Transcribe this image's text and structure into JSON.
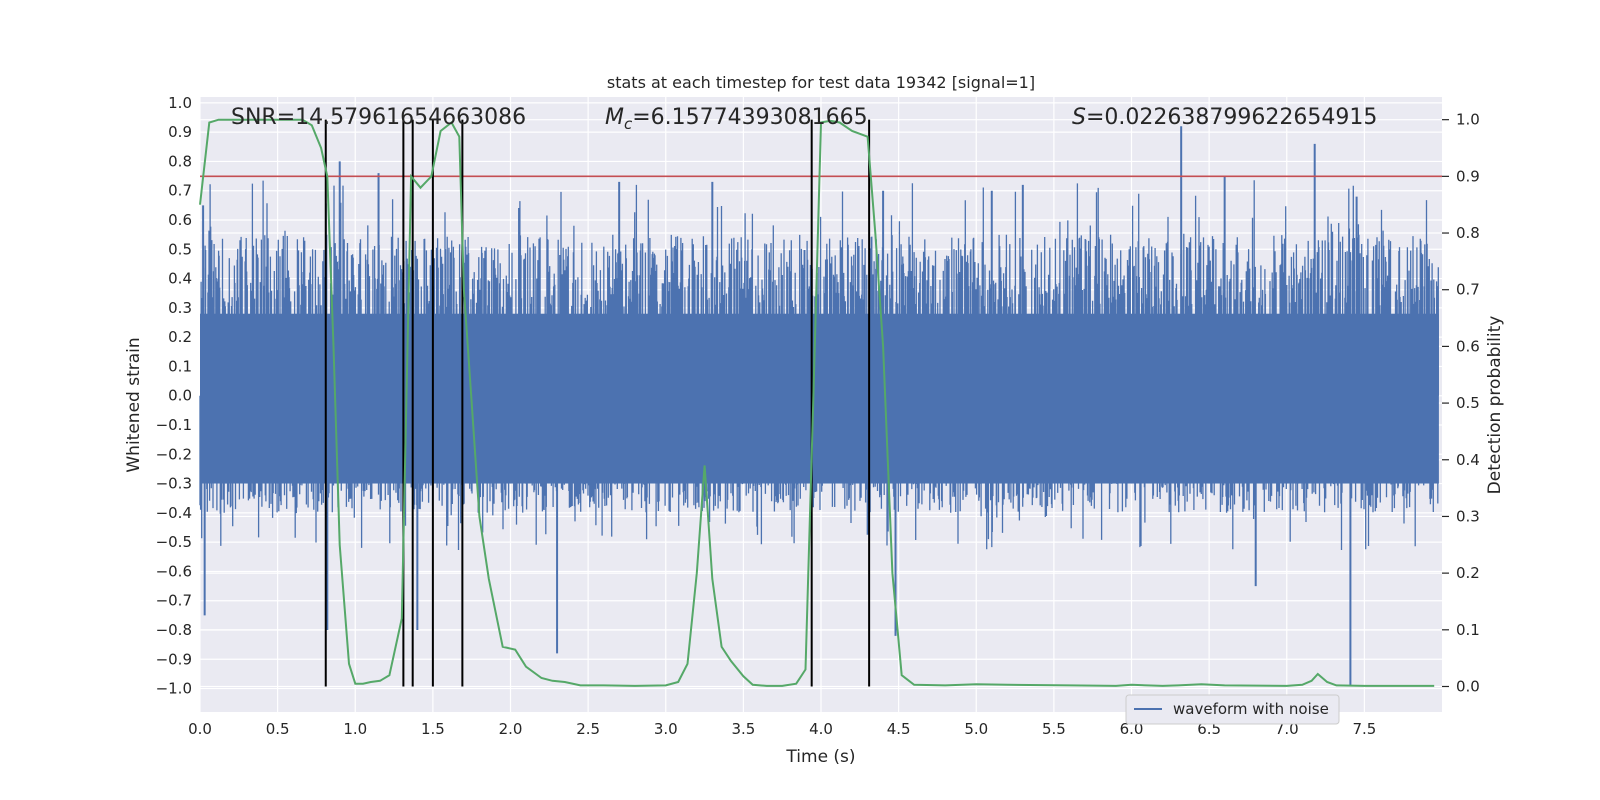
{
  "chart_data": {
    "type": "line",
    "title": "stats at each timestep for test data 19342 [signal=1]",
    "xlabel": "Time (s)",
    "ylabel_left": "Whitened strain",
    "ylabel_right": "Detection probability",
    "xlim": [
      0.0,
      8.0
    ],
    "ylim_left": [
      -1.08,
      1.02
    ],
    "ylim_right": [
      -0.045,
      1.04
    ],
    "x_ticks": [
      "0.0",
      "0.5",
      "1.0",
      "1.5",
      "2.0",
      "2.5",
      "3.0",
      "3.5",
      "4.0",
      "4.5",
      "5.0",
      "5.5",
      "6.0",
      "6.5",
      "7.0",
      "7.5"
    ],
    "y_left_ticks": [
      "1.0",
      "0.9",
      "0.8",
      "0.7",
      "0.6",
      "0.5",
      "0.4",
      "0.3",
      "0.2",
      "0.1",
      "0.0",
      "−0.1",
      "−0.2",
      "−0.3",
      "−0.4",
      "−0.5",
      "−0.6",
      "−0.7",
      "−0.8",
      "−0.9",
      "−1.0"
    ],
    "y_right_ticks": [
      "1.0",
      "0.9",
      "0.8",
      "0.7",
      "0.6",
      "0.5",
      "0.4",
      "0.3",
      "0.2",
      "0.1",
      "0.0"
    ],
    "annotations": {
      "snr": "SNR=14.57961654663086",
      "mc_prefix": "M",
      "mc_sub": "c",
      "mc_value": "=6.15774393081665",
      "s_prefix": "S",
      "s_value": "=0.022638799622654915"
    },
    "threshold": 0.9,
    "vertical_lines": [
      0.81,
      1.31,
      1.37,
      1.5,
      1.69,
      3.94,
      4.31
    ],
    "waveform": {
      "name": "waveform with noise",
      "color": "#4c72b0",
      "seed": 19342,
      "noise_band": [
        -0.4,
        0.55
      ],
      "peaks": [
        {
          "t": 0.02,
          "v": 0.65
        },
        {
          "t": 0.03,
          "v": -0.75
        },
        {
          "t": 0.9,
          "v": 0.8
        },
        {
          "t": 0.82,
          "v": -0.8
        },
        {
          "t": 1.15,
          "v": 0.76
        },
        {
          "t": 1.4,
          "v": -0.8
        },
        {
          "t": 2.3,
          "v": -0.88
        },
        {
          "t": 2.7,
          "v": 0.73
        },
        {
          "t": 3.3,
          "v": 0.73
        },
        {
          "t": 4.4,
          "v": 0.7
        },
        {
          "t": 4.48,
          "v": -0.82
        },
        {
          "t": 5.1,
          "v": 0.7
        },
        {
          "t": 5.3,
          "v": 0.72
        },
        {
          "t": 6.32,
          "v": 0.92
        },
        {
          "t": 6.6,
          "v": 0.75
        },
        {
          "t": 6.8,
          "v": -0.65
        },
        {
          "t": 7.18,
          "v": 0.86
        },
        {
          "t": 7.41,
          "v": -0.99
        },
        {
          "t": 7.45,
          "v": 0.68
        }
      ]
    },
    "probability": {
      "color": "#55a868",
      "x": [
        0.0,
        0.06,
        0.12,
        0.3,
        0.45,
        0.6,
        0.66,
        0.72,
        0.78,
        0.82,
        0.86,
        0.9,
        0.96,
        1.0,
        1.05,
        1.1,
        1.16,
        1.22,
        1.3,
        1.36,
        1.42,
        1.49,
        1.55,
        1.62,
        1.67,
        1.7,
        1.75,
        1.8,
        1.86,
        1.95,
        2.03,
        2.1,
        2.2,
        2.27,
        2.35,
        2.45,
        2.6,
        2.8,
        3.0,
        3.08,
        3.14,
        3.2,
        3.25,
        3.3,
        3.36,
        3.42,
        3.5,
        3.56,
        3.65,
        3.75,
        3.84,
        3.9,
        3.95,
        4.0,
        4.06,
        4.12,
        4.2,
        4.3,
        4.35,
        4.4,
        4.46,
        4.52,
        4.6,
        4.8,
        5.0,
        5.2,
        5.6,
        5.9,
        6.0,
        6.2,
        6.3,
        6.45,
        6.6,
        7.0,
        7.1,
        7.16,
        7.2,
        7.26,
        7.32,
        7.5,
        7.7,
        7.95
      ],
      "y": [
        0.85,
        0.995,
        1.0,
        1.0,
        1.0,
        1.0,
        1.0,
        0.99,
        0.95,
        0.9,
        0.6,
        0.25,
        0.04,
        0.005,
        0.005,
        0.008,
        0.01,
        0.02,
        0.12,
        0.9,
        0.88,
        0.9,
        0.98,
        0.995,
        0.97,
        0.7,
        0.5,
        0.3,
        0.19,
        0.07,
        0.065,
        0.035,
        0.015,
        0.01,
        0.008,
        0.002,
        0.002,
        0.001,
        0.002,
        0.008,
        0.04,
        0.2,
        0.39,
        0.19,
        0.07,
        0.045,
        0.018,
        0.003,
        0.001,
        0.001,
        0.005,
        0.03,
        0.5,
        0.995,
        0.998,
        0.995,
        0.98,
        0.97,
        0.8,
        0.6,
        0.2,
        0.02,
        0.003,
        0.002,
        0.004,
        0.003,
        0.002,
        0.001,
        0.003,
        0.001,
        0.002,
        0.004,
        0.002,
        0.001,
        0.003,
        0.01,
        0.022,
        0.008,
        0.002,
        0.001,
        0.001,
        0.001
      ]
    }
  }
}
